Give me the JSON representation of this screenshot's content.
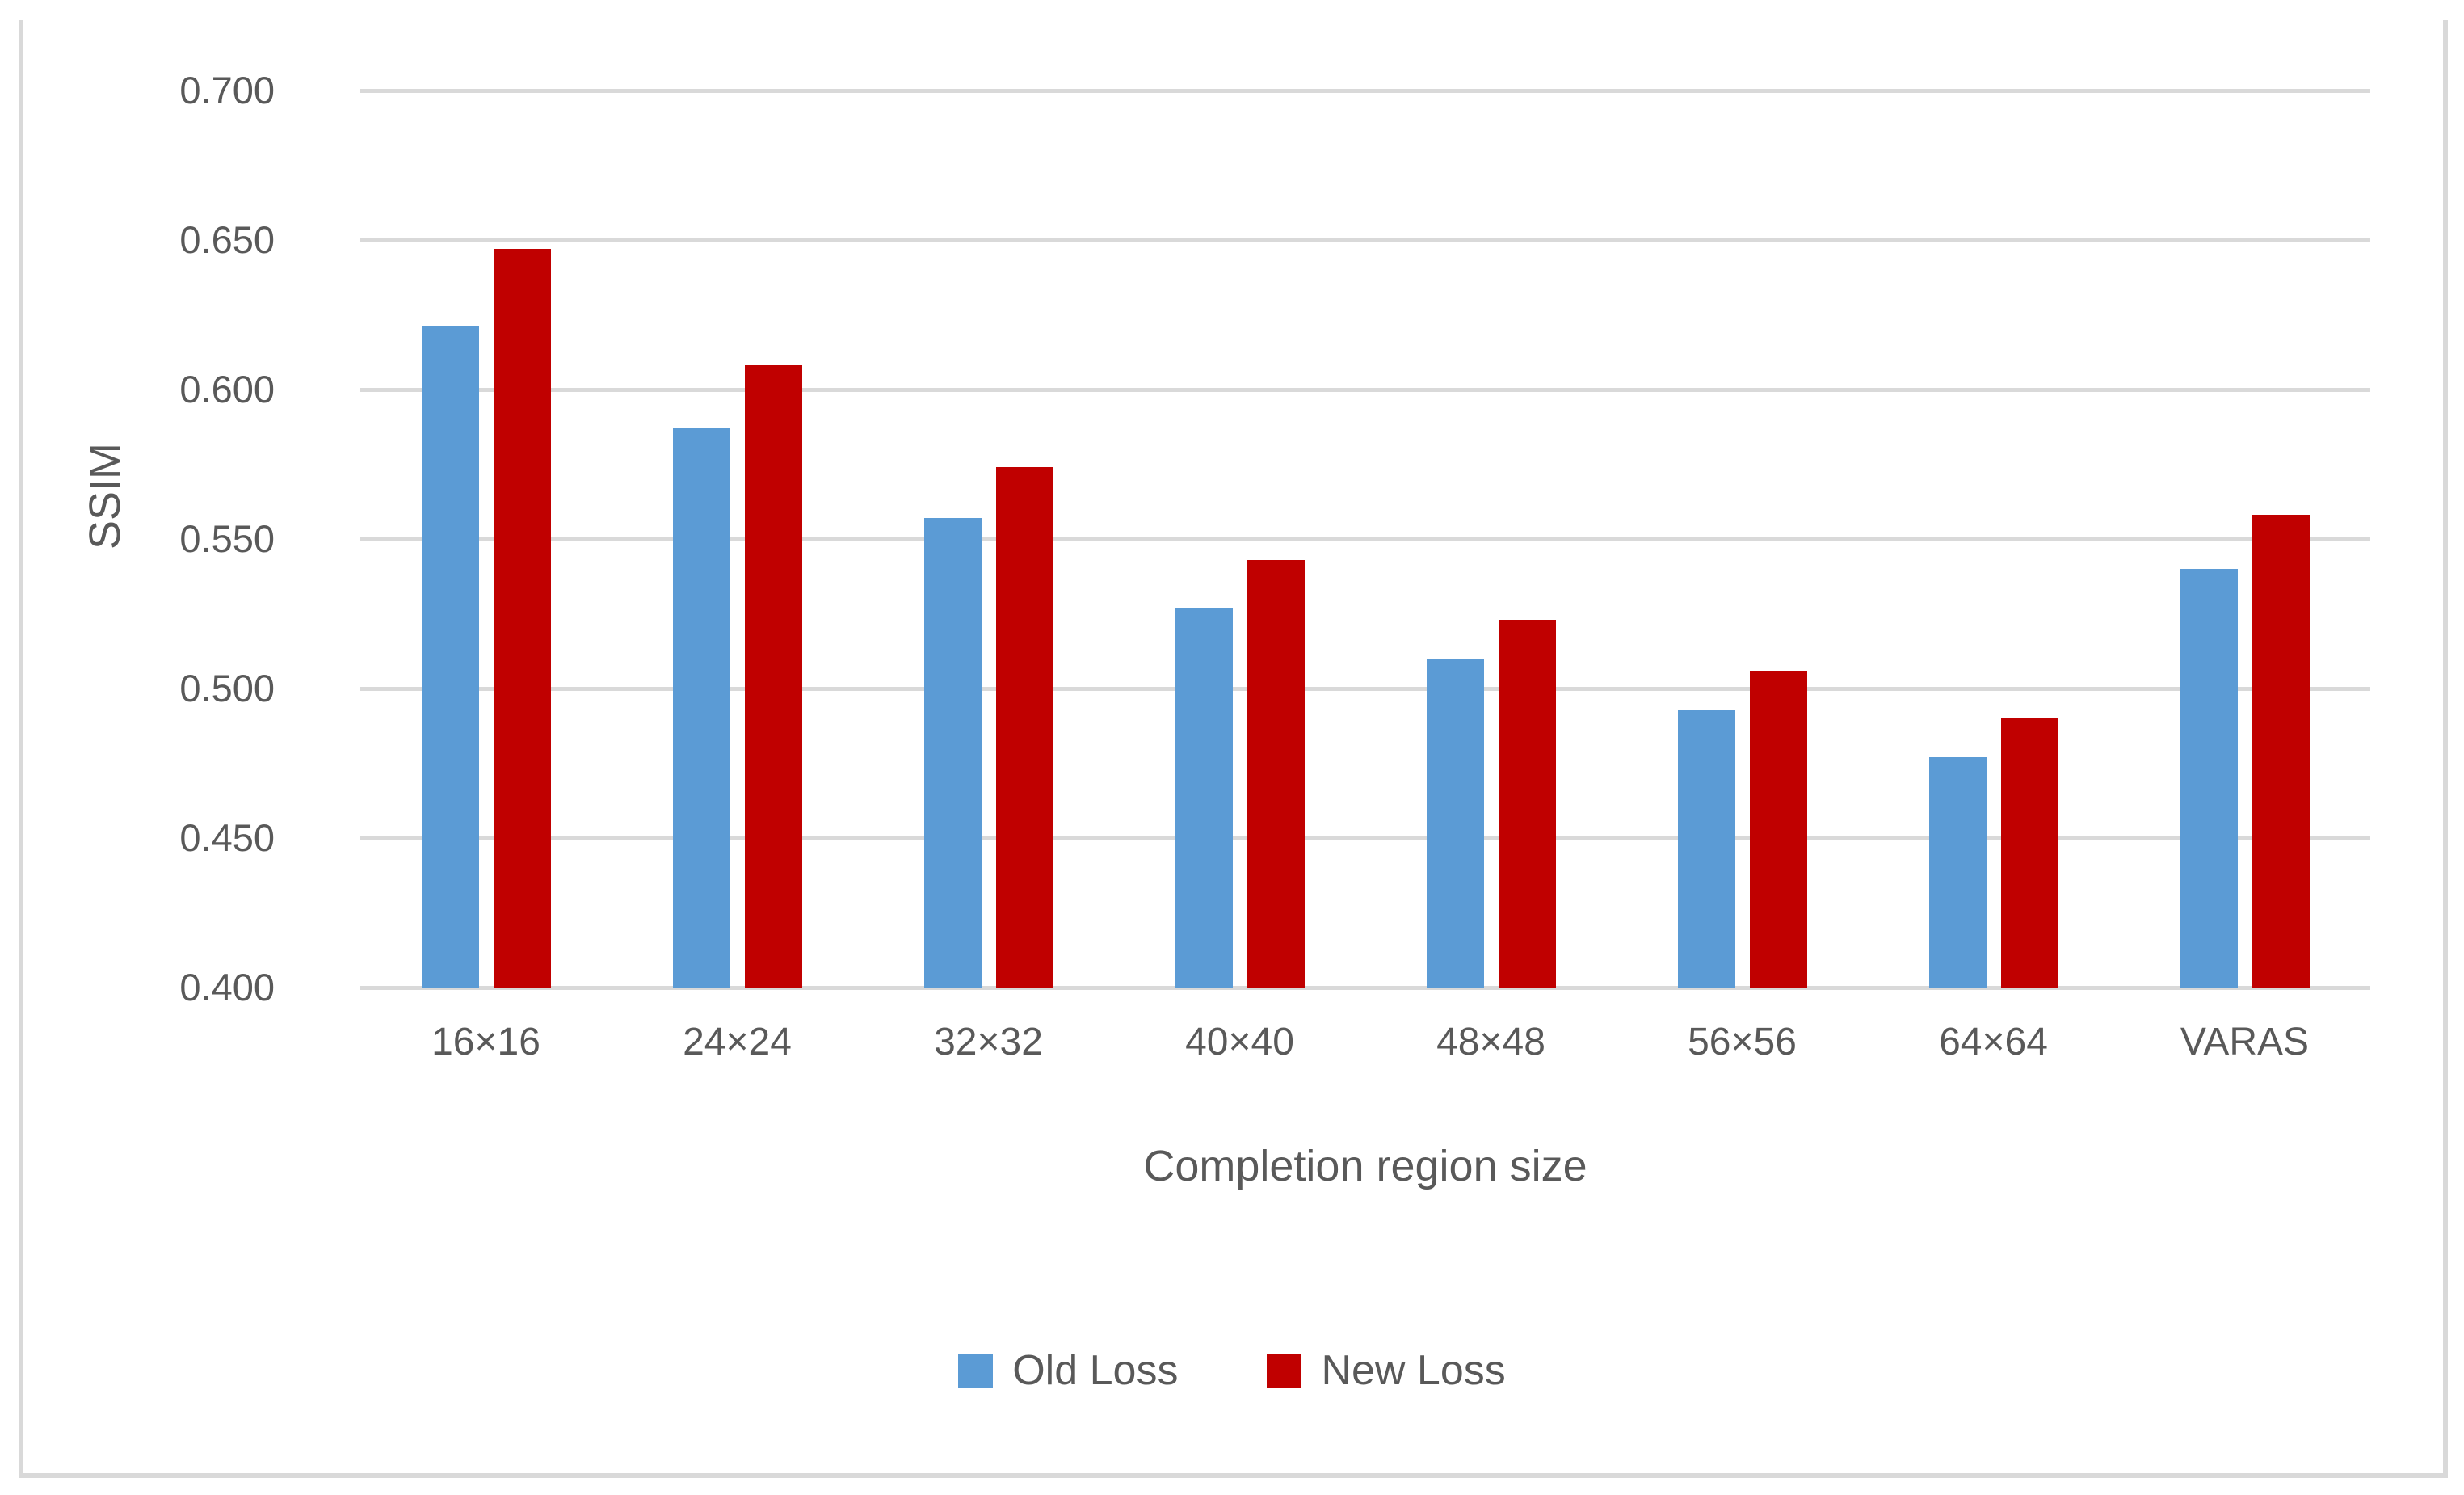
{
  "chart_data": {
    "type": "bar",
    "title": "",
    "categories": [
      "16×16",
      "24×24",
      "32×32",
      "40×40",
      "48×48",
      "56×56",
      "64×64",
      "VARAS"
    ],
    "series": [
      {
        "name": "Old Loss",
        "color": "#5B9BD5",
        "values": [
          0.621,
          0.587,
          0.557,
          0.527,
          0.51,
          0.493,
          0.477,
          0.54
        ]
      },
      {
        "name": "New Loss",
        "color": "#C00000",
        "values": [
          0.647,
          0.608,
          0.574,
          0.543,
          0.523,
          0.506,
          0.49,
          0.558
        ]
      }
    ],
    "xlabel": "Completion region size",
    "ylabel": "SSIM",
    "ylim": [
      0.4,
      0.7
    ],
    "ytick_step": 0.05,
    "ytick_labels": [
      "0.700",
      "0.650",
      "0.600",
      "0.550",
      "0.500",
      "0.450",
      "0.400"
    ],
    "grid": true,
    "legend_position": "bottom"
  },
  "colors": {
    "gridline": "#D9D9D9",
    "frame_border": "#D9D9D9",
    "text": "#595959",
    "background": "#FFFFFF"
  }
}
